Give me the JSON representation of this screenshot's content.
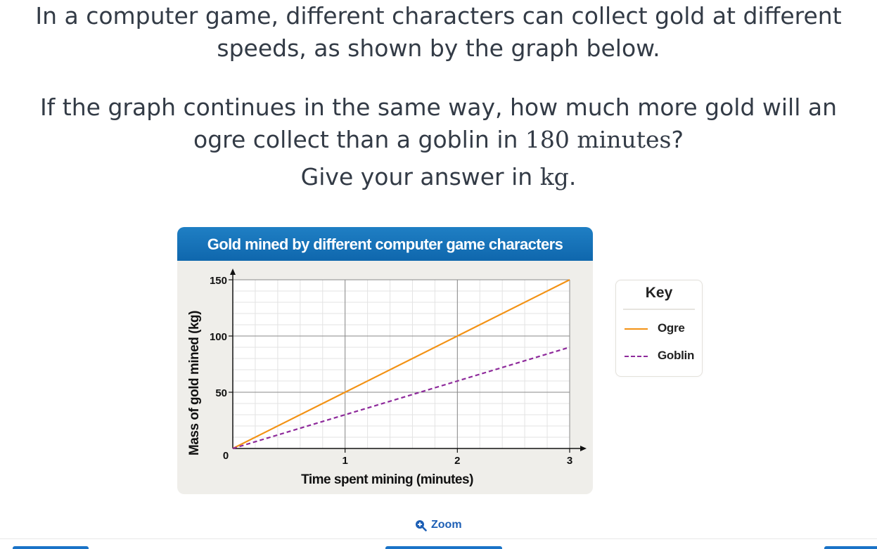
{
  "question": {
    "line1": "In a computer game, different characters can collect gold at different",
    "line1b": "speeds, as shown by the graph below.",
    "line2a": "If the graph continues in the same way, how much more gold will an",
    "line2b_pre": "ogre collect than a goblin in ",
    "line2b_math": "180 minutes",
    "line2b_post": "?",
    "line3_pre": "Give your answer in ",
    "line3_math": "kg",
    "line3_post": "."
  },
  "chart_data": {
    "type": "line",
    "title": "Gold mined by different computer game characters",
    "xlabel": "Time spent mining (minutes)",
    "ylabel": "Mass of gold mined (kg)",
    "xlim": [
      0,
      3
    ],
    "ylim": [
      0,
      150
    ],
    "xticks": [
      "0",
      "1",
      "2",
      "3"
    ],
    "yticks": [
      "50",
      "100",
      "150"
    ],
    "grid": true,
    "legend_position": "right",
    "series": [
      {
        "name": "Ogre",
        "x": [
          0,
          1,
          2,
          3
        ],
        "y": [
          0,
          50,
          100,
          150
        ],
        "color": "#f39214",
        "style": "solid"
      },
      {
        "name": "Goblin",
        "x": [
          0,
          1,
          2,
          3
        ],
        "y": [
          0,
          30,
          60,
          90
        ],
        "color": "#8e2a9b",
        "style": "dashed"
      }
    ]
  },
  "legend": {
    "title": "Key",
    "items": [
      {
        "label": "Ogre",
        "color": "#f39214",
        "style": "solid"
      },
      {
        "label": "Goblin",
        "color": "#8e2a9b",
        "style": "dashed"
      }
    ]
  },
  "zoom": {
    "label": "Zoom",
    "icon": "zoom-in-icon"
  }
}
